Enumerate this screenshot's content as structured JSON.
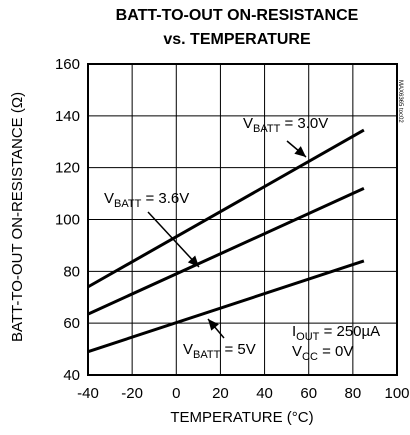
{
  "chart_data": {
    "type": "line",
    "title": [
      "BATT-TO-OUT ON-RESISTANCE",
      "vs. TEMPERATURE"
    ],
    "xlabel": "TEMPERATURE (°C)",
    "ylabel": "BATT-TO-OUT ON-RESISTANCE (Ω)",
    "side_id": "MAX6365 toc02",
    "xlim": [
      -40,
      100
    ],
    "ylim": [
      40,
      160
    ],
    "xticks": [
      -40,
      -20,
      0,
      20,
      40,
      60,
      80,
      100
    ],
    "yticks": [
      40,
      60,
      80,
      100,
      120,
      140,
      160
    ],
    "grid": true,
    "series": [
      {
        "name": "VBATT = 3.0V",
        "x": [
          -40,
          85
        ],
        "y": [
          74,
          134.5
        ]
      },
      {
        "name": "VBATT = 3.6V",
        "x": [
          -40,
          85
        ],
        "y": [
          63.5,
          112
        ]
      },
      {
        "name": "VBATT = 5V",
        "x": [
          -40,
          85
        ],
        "y": [
          49,
          84
        ]
      }
    ],
    "annotations": [
      {
        "main": "V",
        "sub": "BATT",
        "rest": " = 3.0V",
        "series": 0
      },
      {
        "main": "V",
        "sub": "BATT",
        "rest": " = 3.6V",
        "series": 1
      },
      {
        "main": "V",
        "sub": "BATT",
        "rest": " = 5V",
        "series": 2
      },
      {
        "main": "I",
        "sub": "OUT",
        "rest": " = 250µA"
      },
      {
        "main": "V",
        "sub": "CC",
        "rest": " = 0V"
      }
    ]
  }
}
